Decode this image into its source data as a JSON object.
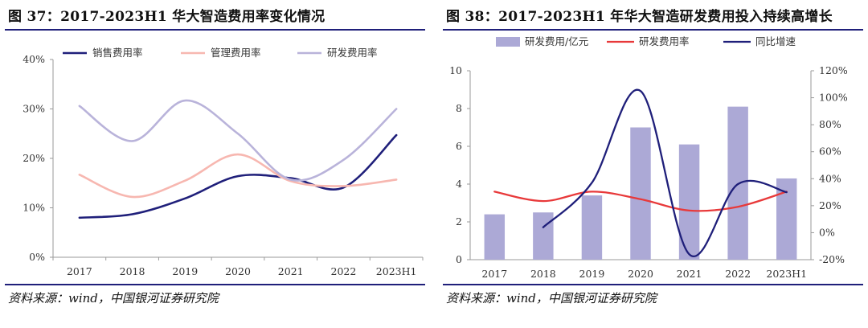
{
  "chart_data": [
    {
      "type": "line",
      "title": "图 37：2017-2023H1 华大智造费用率变化情况",
      "categories": [
        "2017",
        "2018",
        "2019",
        "2020",
        "2021",
        "2022",
        "2023H1"
      ],
      "y_ticks": [
        "0%",
        "10%",
        "20%",
        "30%",
        "40%"
      ],
      "ylim": [
        0,
        40
      ],
      "series": [
        {
          "name": "销售费用率",
          "color": "#1f1f7a",
          "values": [
            8,
            8.7,
            11.9,
            16.4,
            16.0,
            14.1,
            24.7
          ]
        },
        {
          "name": "管理费用率",
          "color": "#f7b7b0",
          "values": [
            16.7,
            12.2,
            15.5,
            20.8,
            15.4,
            14.4,
            15.7
          ]
        },
        {
          "name": "研发费用率",
          "color": "#b9b3da",
          "values": [
            30.6,
            23.5,
            31.7,
            25.0,
            15.7,
            19.7,
            30.0
          ]
        }
      ],
      "source": "资料来源：wind，中国银河证券研究院"
    },
    {
      "type": "bar+line",
      "title": "图 38：2017-2023H1 年华大智造研发费用投入持续高增长",
      "categories": [
        "2017",
        "2018",
        "2019",
        "2020",
        "2021",
        "2022",
        "2023H1"
      ],
      "y_left_ticks": [
        "0",
        "2",
        "4",
        "6",
        "8",
        "10"
      ],
      "y_left_lim": [
        0,
        10
      ],
      "y_right_ticks": [
        "-20%",
        "0%",
        "20%",
        "40%",
        "60%",
        "80%",
        "100%",
        "120%"
      ],
      "y_right_lim": [
        -20,
        120
      ],
      "bar_series": {
        "name": "研发费用/亿元",
        "color": "#aca9d6",
        "values": [
          2.4,
          2.5,
          3.4,
          7.0,
          6.1,
          8.1,
          4.3
        ]
      },
      "line_series": [
        {
          "name": "研发费用率",
          "axis": "left",
          "color": "#e8393a",
          "values": [
            3.6,
            3.1,
            3.6,
            3.2,
            2.6,
            2.8,
            3.6
          ]
        },
        {
          "name": "同比增速",
          "axis": "right",
          "color": "#1f1f7a",
          "values": [
            null,
            4,
            37,
            105,
            -16,
            36,
            30
          ]
        }
      ],
      "source": "资料来源：wind，中国银河证券研究院"
    }
  ]
}
